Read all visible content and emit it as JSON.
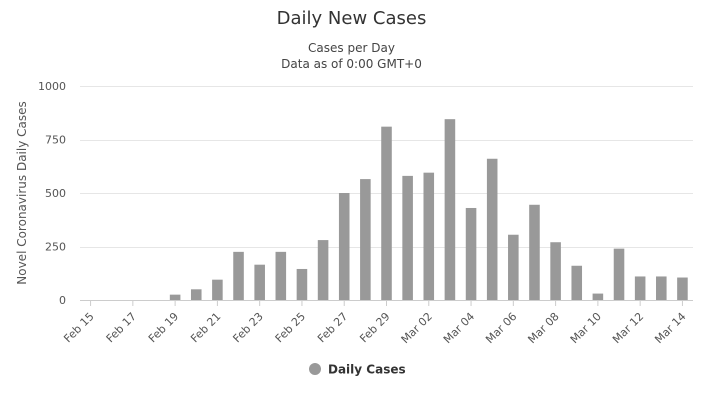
{
  "chart_data": {
    "type": "bar",
    "title": "Daily New Cases",
    "subtitle_lines": [
      "Cases per Day",
      "Data as of 0:00 GMT+0"
    ],
    "ylabel": "Novel Coronavirus Daily Cases",
    "xlabel": "",
    "ylim": [
      0,
      1000
    ],
    "yticks": [
      "0",
      "250",
      "500",
      "750",
      "1000"
    ],
    "ytick_values": [
      0,
      250,
      500,
      750,
      1000
    ],
    "grid": true,
    "legend_position": "bottom-center",
    "categories": [
      "Feb 15",
      "Feb 16",
      "Feb 17",
      "Feb 18",
      "Feb 19",
      "Feb 20",
      "Feb 21",
      "Feb 22",
      "Feb 23",
      "Feb 24",
      "Feb 25",
      "Feb 26",
      "Feb 27",
      "Feb 28",
      "Feb 29",
      "Mar 01",
      "Mar 02",
      "Mar 03",
      "Mar 04",
      "Mar 05",
      "Mar 06",
      "Mar 07",
      "Mar 08",
      "Mar 09",
      "Mar 10",
      "Mar 11",
      "Mar 12",
      "Mar 13",
      "Mar 14"
    ],
    "xtick_labels": [
      "Feb 15",
      "Feb 17",
      "Feb 19",
      "Feb 21",
      "Feb 23",
      "Feb 25",
      "Feb 27",
      "Feb 29",
      "Mar 02",
      "Mar 04",
      "Mar 06",
      "Mar 08",
      "Mar 10",
      "Mar 12",
      "Mar 14"
    ],
    "series": [
      {
        "name": "Daily Cases",
        "color": "#999999",
        "values": [
          0,
          0,
          0,
          0,
          25,
          50,
          95,
          225,
          165,
          225,
          145,
          280,
          500,
          565,
          810,
          580,
          595,
          845,
          430,
          660,
          305,
          445,
          270,
          160,
          30,
          240,
          110,
          110,
          105
        ]
      }
    ]
  }
}
